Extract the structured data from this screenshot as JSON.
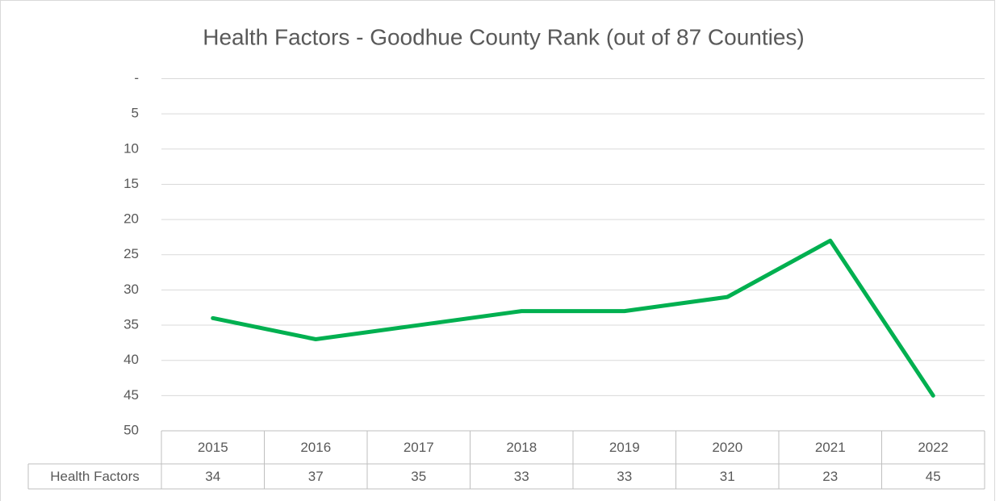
{
  "chart_data": {
    "type": "line",
    "title": "Health Factors - Goodhue County Rank (out of 87 Counties)",
    "categories": [
      "2015",
      "2016",
      "2017",
      "2018",
      "2019",
      "2020",
      "2021",
      "2022"
    ],
    "series": [
      {
        "name": "Health Factors",
        "color": "#00b050",
        "values": [
          34,
          37,
          35,
          33,
          33,
          31,
          23,
          45
        ]
      }
    ],
    "ylim": [
      0,
      50
    ],
    "y_inverted": true,
    "yticks": [
      {
        "value": 0,
        "label": "-"
      },
      5,
      10,
      15,
      20,
      25,
      30,
      35,
      40,
      45,
      50
    ],
    "grid": true,
    "data_table": true
  }
}
